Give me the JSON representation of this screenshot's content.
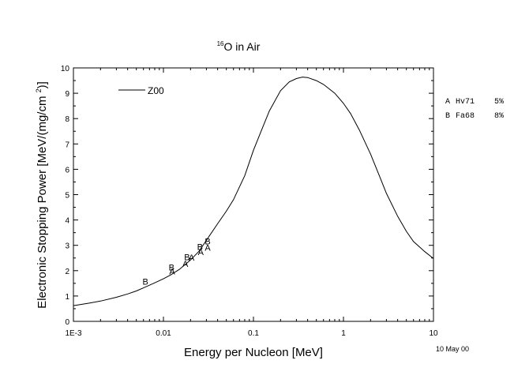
{
  "chart_data": {
    "type": "line",
    "title_super": "16",
    "title_main": "O in Air",
    "xlabel": "Energy per Nucleon [MeV]",
    "ylabel": "Electronic Stopping Power [MeV/(mg/cm 2)]",
    "xscale": "log",
    "xlim": [
      0.001,
      10
    ],
    "ylim": [
      0,
      10
    ],
    "x_ticks": [
      0.001,
      0.01,
      0.1,
      1,
      10
    ],
    "x_tick_labels": [
      "1E-3",
      "0.01",
      "0.1",
      "1",
      "10"
    ],
    "y_ticks": [
      0,
      1,
      2,
      3,
      4,
      5,
      6,
      7,
      8,
      9,
      10
    ],
    "y_tick_labels": [
      "0",
      "1",
      "2",
      "3",
      "4",
      "5",
      "6",
      "7",
      "8",
      "9",
      "10"
    ],
    "grid": false,
    "legend_position": "top-left",
    "series": [
      {
        "name": "Z00",
        "color": "#000000",
        "x": [
          0.001,
          0.0015,
          0.002,
          0.003,
          0.004,
          0.005,
          0.006,
          0.008,
          0.01,
          0.012,
          0.015,
          0.02,
          0.025,
          0.03,
          0.04,
          0.05,
          0.06,
          0.08,
          0.1,
          0.12,
          0.15,
          0.2,
          0.25,
          0.3,
          0.35,
          0.4,
          0.5,
          0.6,
          0.8,
          1,
          1.2,
          1.5,
          2,
          2.5,
          3,
          4,
          5,
          6,
          8,
          10
        ],
        "y": [
          0.62,
          0.72,
          0.8,
          0.95,
          1.08,
          1.2,
          1.32,
          1.52,
          1.68,
          1.83,
          2.05,
          2.42,
          2.78,
          3.2,
          3.85,
          4.35,
          4.8,
          5.75,
          6.75,
          7.45,
          8.3,
          9.1,
          9.45,
          9.58,
          9.64,
          9.62,
          9.5,
          9.35,
          9.0,
          8.6,
          8.2,
          7.55,
          6.6,
          5.75,
          5.05,
          4.15,
          3.55,
          3.15,
          2.75,
          2.48
        ]
      }
    ],
    "markers": [
      {
        "label": "A",
        "x": 0.0125,
        "y": 1.98
      },
      {
        "label": "A",
        "x": 0.0175,
        "y": 2.27
      },
      {
        "label": "A",
        "x": 0.0205,
        "y": 2.53
      },
      {
        "label": "A",
        "x": 0.026,
        "y": 2.74
      },
      {
        "label": "A",
        "x": 0.031,
        "y": 2.92
      },
      {
        "label": "B",
        "x": 0.0063,
        "y": 1.58
      },
      {
        "label": "B",
        "x": 0.0123,
        "y": 2.14
      },
      {
        "label": "B",
        "x": 0.0183,
        "y": 2.54
      },
      {
        "label": "B",
        "x": 0.0255,
        "y": 2.95
      },
      {
        "label": "B",
        "x": 0.031,
        "y": 3.16
      }
    ],
    "side_legend": [
      {
        "marker": "A",
        "ref": "Hv71",
        "err": "5%"
      },
      {
        "marker": "B",
        "ref": "Fa68",
        "err": "8%"
      }
    ],
    "date": "10 May 00"
  }
}
